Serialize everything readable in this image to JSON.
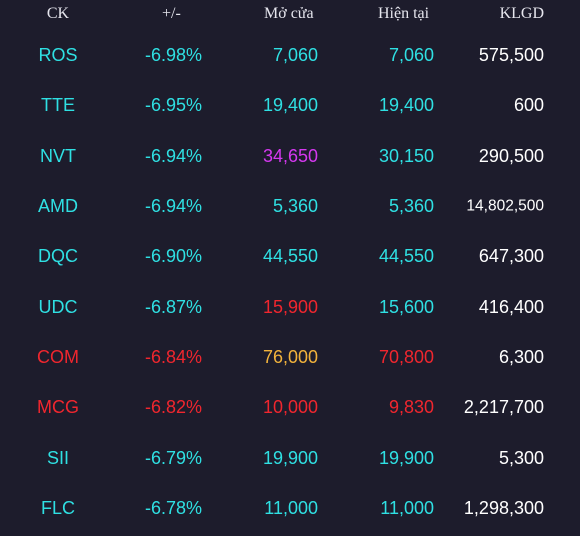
{
  "colors": {
    "background": "#1d1c2c",
    "floor_cyan": "#2fe0e3",
    "ceiling_purple": "#d538f0",
    "down_red": "#f0262e",
    "reference_yellow": "#f2b33c",
    "volume_white": "#ffffff"
  },
  "header": {
    "ck": "CK",
    "change": "+/-",
    "open": "Mở cửa",
    "current": "Hiện tại",
    "volume": "KLGD"
  },
  "rows": [
    {
      "ck": "ROS",
      "change": "-6.98%",
      "open": "7,060",
      "current": "7,060",
      "volume": "575,500",
      "ck_color": "#2fe0e3",
      "change_color": "#2fe0e3",
      "open_color": "#2fe0e3",
      "current_color": "#2fe0e3"
    },
    {
      "ck": "TTE",
      "change": "-6.95%",
      "open": "19,400",
      "current": "19,400",
      "volume": "600",
      "ck_color": "#2fe0e3",
      "change_color": "#2fe0e3",
      "open_color": "#2fe0e3",
      "current_color": "#2fe0e3"
    },
    {
      "ck": "NVT",
      "change": "-6.94%",
      "open": "34,650",
      "current": "30,150",
      "volume": "290,500",
      "ck_color": "#2fe0e3",
      "change_color": "#2fe0e3",
      "open_color": "#d538f0",
      "current_color": "#2fe0e3"
    },
    {
      "ck": "AMD",
      "change": "-6.94%",
      "open": "5,360",
      "current": "5,360",
      "volume": "14,802,500",
      "ck_color": "#2fe0e3",
      "change_color": "#2fe0e3",
      "open_color": "#2fe0e3",
      "current_color": "#2fe0e3"
    },
    {
      "ck": "DQC",
      "change": "-6.90%",
      "open": "44,550",
      "current": "44,550",
      "volume": "647,300",
      "ck_color": "#2fe0e3",
      "change_color": "#2fe0e3",
      "open_color": "#2fe0e3",
      "current_color": "#2fe0e3"
    },
    {
      "ck": "UDC",
      "change": "-6.87%",
      "open": "15,900",
      "current": "15,600",
      "volume": "416,400",
      "ck_color": "#2fe0e3",
      "change_color": "#2fe0e3",
      "open_color": "#f0262e",
      "current_color": "#2fe0e3"
    },
    {
      "ck": "COM",
      "change": "-6.84%",
      "open": "76,000",
      "current": "70,800",
      "volume": "6,300",
      "ck_color": "#f0262e",
      "change_color": "#f0262e",
      "open_color": "#f2b33c",
      "current_color": "#f0262e"
    },
    {
      "ck": "MCG",
      "change": "-6.82%",
      "open": "10,000",
      "current": "9,830",
      "volume": "2,217,700",
      "ck_color": "#f0262e",
      "change_color": "#f0262e",
      "open_color": "#f0262e",
      "current_color": "#f0262e"
    },
    {
      "ck": "SII",
      "change": "-6.79%",
      "open": "19,900",
      "current": "19,900",
      "volume": "5,300",
      "ck_color": "#2fe0e3",
      "change_color": "#2fe0e3",
      "open_color": "#2fe0e3",
      "current_color": "#2fe0e3"
    },
    {
      "ck": "FLC",
      "change": "-6.78%",
      "open": "11,000",
      "current": "11,000",
      "volume": "1,298,300",
      "ck_color": "#2fe0e3",
      "change_color": "#2fe0e3",
      "open_color": "#2fe0e3",
      "current_color": "#2fe0e3"
    }
  ]
}
